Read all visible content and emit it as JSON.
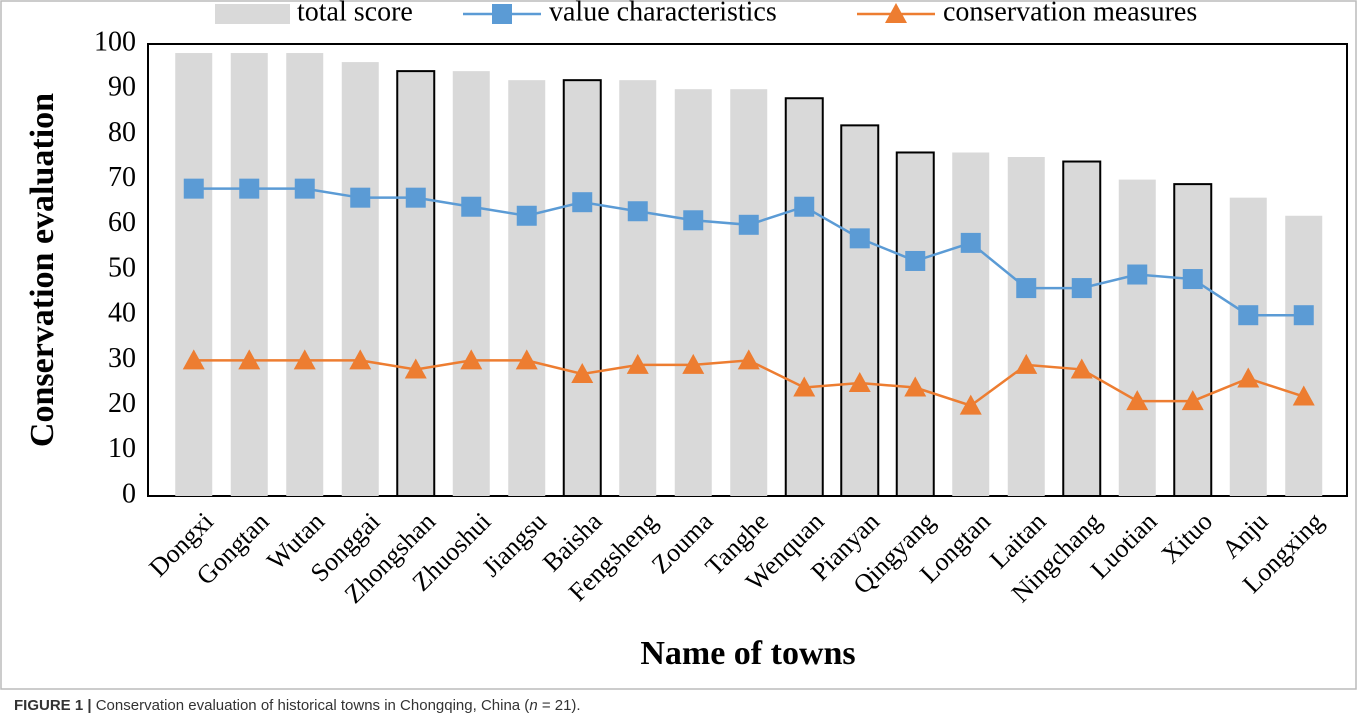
{
  "chart_data": {
    "type": "bar-line",
    "y_label": "Conservation evaluation",
    "x_label": "Name of towns",
    "categories": [
      "Dongxi",
      "Gongtan",
      "Wutan",
      "Songgai",
      "Zhongshan",
      "Zhuoshui",
      "Jiangsu",
      "Baisha",
      "Fengsheng",
      "Zouma",
      "Tanghe",
      "Wenquan",
      "Pianyan",
      "Qingyang",
      "Longtan",
      "Laitan",
      "Ningchang",
      "Luotian",
      "Xituo",
      "Anju",
      "Longxing"
    ],
    "series": [
      {
        "name": "total score",
        "kind": "bar",
        "color": "#d9d9d9",
        "values": [
          98,
          98,
          98,
          96,
          94,
          94,
          92,
          92,
          92,
          90,
          90,
          88,
          82,
          76,
          76,
          75,
          74,
          70,
          69,
          66,
          62
        ],
        "outlined": [
          false,
          false,
          false,
          false,
          true,
          false,
          false,
          true,
          false,
          false,
          false,
          true,
          true,
          true,
          false,
          false,
          true,
          false,
          true,
          false,
          false
        ]
      },
      {
        "name": "value characteristics",
        "kind": "line",
        "marker": "square",
        "color": "#5b9bd5",
        "values": [
          68,
          68,
          68,
          66,
          66,
          64,
          62,
          65,
          63,
          61,
          60,
          64,
          57,
          52,
          56,
          46,
          46,
          49,
          48,
          40,
          40
        ]
      },
      {
        "name": "conservation measures",
        "kind": "line",
        "marker": "triangle",
        "color": "#ed7d31",
        "values": [
          30,
          30,
          30,
          30,
          28,
          30,
          30,
          27,
          29,
          29,
          30,
          24,
          25,
          24,
          20,
          29,
          28,
          21,
          21,
          26,
          22
        ]
      }
    ],
    "ylim": [
      0,
      100
    ],
    "yticks": [
      0,
      10,
      20,
      30,
      40,
      50,
      60,
      70,
      80,
      90,
      100
    ],
    "grid": false,
    "legend": "top"
  },
  "caption": {
    "label": "FIGURE 1 |",
    "text": "Conservation evaluation of historical towns in Chongqing, China (",
    "variable": "n",
    "rest": " = 21)."
  }
}
